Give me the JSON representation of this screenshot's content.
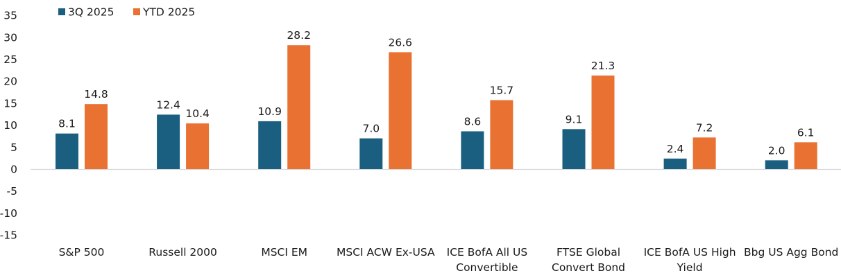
{
  "chart_data": {
    "type": "bar",
    "title": "",
    "xlabel": "",
    "ylabel": "",
    "ylim": [
      -15,
      35
    ],
    "yticks": [
      35,
      30,
      25,
      20,
      15,
      10,
      5,
      0,
      -5,
      -10,
      -15
    ],
    "grid": false,
    "legend_position": "top-left",
    "categories": [
      [
        "S&P 500"
      ],
      [
        "Russell 2000"
      ],
      [
        "MSCI EM"
      ],
      [
        "MSCI ACW Ex-USA"
      ],
      [
        "ICE BofA All US",
        "Convertible"
      ],
      [
        "FTSE Global",
        "Convert Bond"
      ],
      [
        "ICE BofA US High",
        "Yield"
      ],
      [
        "Bbg US Agg Bond"
      ]
    ],
    "series": [
      {
        "name": "3Q 2025",
        "color": "#1a5f80",
        "values": [
          8.1,
          12.4,
          10.9,
          7.0,
          8.6,
          9.1,
          2.4,
          2.0
        ]
      },
      {
        "name": "YTD 2025",
        "color": "#e97132",
        "values": [
          14.8,
          10.4,
          28.2,
          26.6,
          15.7,
          21.3,
          7.2,
          6.1
        ]
      }
    ]
  }
}
